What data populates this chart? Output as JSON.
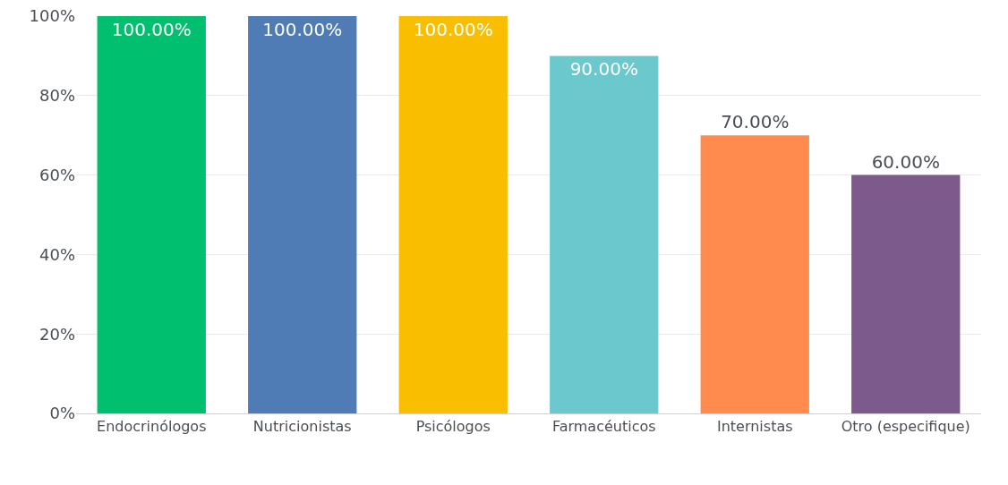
{
  "chart_data": {
    "type": "bar",
    "categories": [
      "Endocrinólogos",
      "Nutricionistas",
      "Psicólogos",
      "Farmacéuticos",
      "Internistas",
      "Otro (especifique)"
    ],
    "values": [
      100,
      100,
      100,
      90,
      70,
      60
    ],
    "colors": [
      "#00bf6f",
      "#507cb6",
      "#f9be00",
      "#6bc8cd",
      "#ff8b4f",
      "#7d5a8c"
    ],
    "value_labels": [
      "100.00%",
      "100.00%",
      "100.00%",
      "90.00%",
      "70.00%",
      "60.00%"
    ],
    "ylim": [
      0,
      100
    ],
    "yticks": [
      {
        "value": 0,
        "label": "0%"
      },
      {
        "value": 20,
        "label": "20%"
      },
      {
        "value": 40,
        "label": "40%"
      },
      {
        "value": 60,
        "label": "60%"
      },
      {
        "value": 80,
        "label": "80%"
      },
      {
        "value": 100,
        "label": "100%"
      }
    ],
    "grid": "y"
  }
}
